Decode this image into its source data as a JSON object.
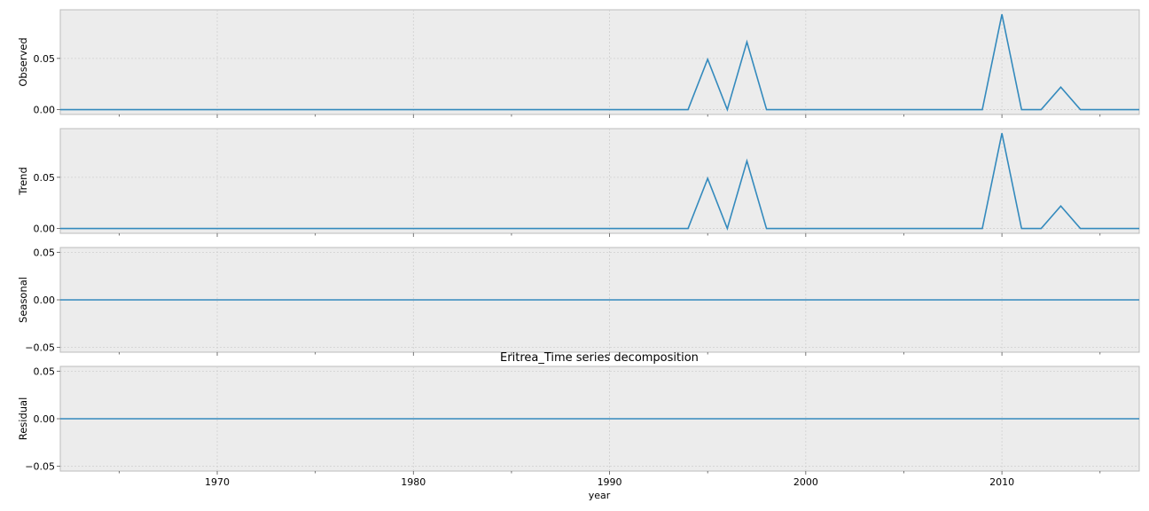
{
  "chart_data": {
    "type": "line",
    "title": "Eritrea_Time series decomposition",
    "xlabel": "year",
    "xlim": [
      1962,
      2017
    ],
    "x_ticks": [
      1970,
      1980,
      1990,
      2000,
      2010
    ],
    "x": [
      1962,
      1963,
      1964,
      1965,
      1966,
      1967,
      1968,
      1969,
      1970,
      1971,
      1972,
      1973,
      1974,
      1975,
      1976,
      1977,
      1978,
      1979,
      1980,
      1981,
      1982,
      1983,
      1984,
      1985,
      1986,
      1987,
      1988,
      1989,
      1990,
      1991,
      1992,
      1993,
      1994,
      1995,
      1996,
      1997,
      1998,
      1999,
      2000,
      2001,
      2002,
      2003,
      2004,
      2005,
      2006,
      2007,
      2008,
      2009,
      2010,
      2011,
      2012,
      2013,
      2014,
      2015,
      2016,
      2017
    ],
    "line_color": "#348abd",
    "grid": true,
    "panels": [
      {
        "name": "observed",
        "ylabel": "Observed",
        "ylim": [
          -0.0047,
          0.0975
        ],
        "y_ticks": [
          0.0,
          0.05
        ],
        "y_tick_labels": [
          "0.00",
          "0.05"
        ],
        "values": [
          0,
          0,
          0,
          0,
          0,
          0,
          0,
          0,
          0,
          0,
          0,
          0,
          0,
          0,
          0,
          0,
          0,
          0,
          0,
          0,
          0,
          0,
          0,
          0,
          0,
          0,
          0,
          0,
          0,
          0,
          0,
          0,
          0,
          0.049,
          0,
          0.066,
          0,
          0,
          0,
          0,
          0,
          0,
          0,
          0,
          0,
          0,
          0,
          0,
          0.093,
          0,
          0,
          0.022,
          0,
          0,
          0,
          0
        ]
      },
      {
        "name": "trend",
        "ylabel": "Trend",
        "ylim": [
          -0.0047,
          0.0975
        ],
        "y_ticks": [
          0.0,
          0.05
        ],
        "y_tick_labels": [
          "0.00",
          "0.05"
        ],
        "values": [
          0,
          0,
          0,
          0,
          0,
          0,
          0,
          0,
          0,
          0,
          0,
          0,
          0,
          0,
          0,
          0,
          0,
          0,
          0,
          0,
          0,
          0,
          0,
          0,
          0,
          0,
          0,
          0,
          0,
          0,
          0,
          0,
          0,
          0.049,
          0,
          0.066,
          0,
          0,
          0,
          0,
          0,
          0,
          0,
          0,
          0,
          0,
          0,
          0,
          0.093,
          0,
          0,
          0.022,
          0,
          0,
          0,
          0
        ]
      },
      {
        "name": "seasonal",
        "ylabel": "Seasonal",
        "ylim": [
          -0.055,
          0.055
        ],
        "y_ticks": [
          -0.05,
          0.0,
          0.05
        ],
        "y_tick_labels": [
          "−0.05",
          "0.00",
          "0.05"
        ],
        "values": [
          0,
          0,
          0,
          0,
          0,
          0,
          0,
          0,
          0,
          0,
          0,
          0,
          0,
          0,
          0,
          0,
          0,
          0,
          0,
          0,
          0,
          0,
          0,
          0,
          0,
          0,
          0,
          0,
          0,
          0,
          0,
          0,
          0,
          0,
          0,
          0,
          0,
          0,
          0,
          0,
          0,
          0,
          0,
          0,
          0,
          0,
          0,
          0,
          0,
          0,
          0,
          0,
          0,
          0,
          0,
          0
        ]
      },
      {
        "name": "residual",
        "ylabel": "Residual",
        "ylim": [
          -0.055,
          0.055
        ],
        "y_ticks": [
          -0.05,
          0.0,
          0.05
        ],
        "y_tick_labels": [
          "−0.05",
          "0.00",
          "0.05"
        ],
        "values": [
          0,
          0,
          0,
          0,
          0,
          0,
          0,
          0,
          0,
          0,
          0,
          0,
          0,
          0,
          0,
          0,
          0,
          0,
          0,
          0,
          0,
          0,
          0,
          0,
          0,
          0,
          0,
          0,
          0,
          0,
          0,
          0,
          0,
          0,
          0,
          0,
          0,
          0,
          0,
          0,
          0,
          0,
          0,
          0,
          0,
          0,
          0,
          0,
          0,
          0,
          0,
          0,
          0,
          0,
          0,
          0
        ]
      }
    ]
  }
}
